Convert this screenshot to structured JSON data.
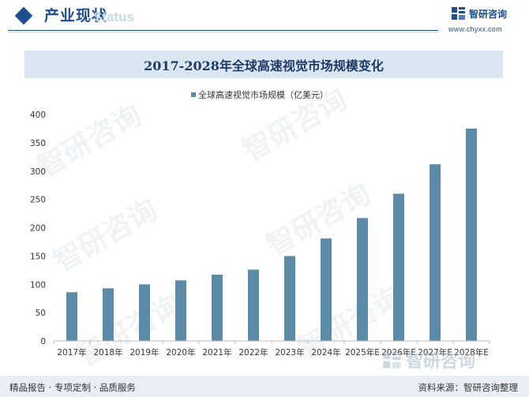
{
  "header": {
    "section_title": "产业现状",
    "section_subtitle": "Status",
    "brand_name": "智研咨询",
    "brand_url": "www.chyxx.com"
  },
  "chart_data": {
    "type": "bar",
    "title": "2017-2028年全球高速视觉市场规模变化",
    "categories": [
      "2017年",
      "2018年",
      "2019年",
      "2020年",
      "2021年",
      "2022年",
      "2023年",
      "2024年",
      "2025年E",
      "2026年E",
      "2027年E",
      "2028年E"
    ],
    "series": [
      {
        "name": "全球高速视觉市场规模（亿美元）",
        "values": [
          86,
          93,
          100,
          107,
          117,
          126,
          150,
          181,
          217,
          260,
          312,
          375
        ],
        "color": "#5b8ba6"
      }
    ],
    "ylim": [
      0,
      400
    ],
    "yticks": [
      0,
      50,
      100,
      150,
      200,
      250,
      300,
      350,
      400
    ],
    "grid": false,
    "legend_position": "top-center"
  },
  "footer": {
    "tagline": "精品报告 · 专项定制 · 品质服务",
    "source": "资料来源：智研咨询整理",
    "brand_name": "智研咨询"
  },
  "watermark": {
    "text": "智研咨询"
  }
}
